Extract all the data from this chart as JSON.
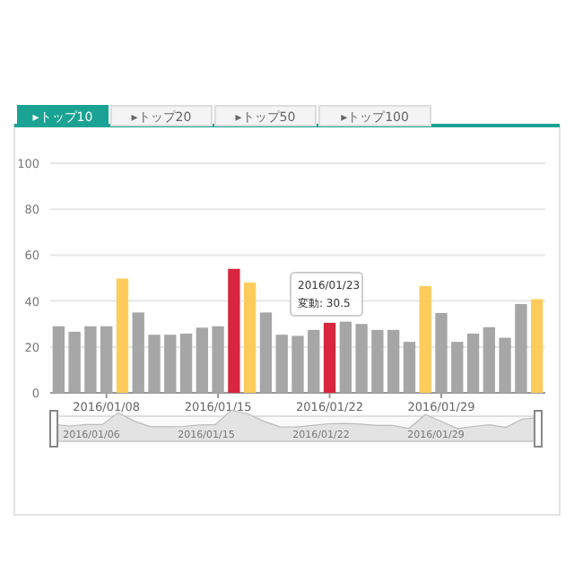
{
  "chart_data": {
    "type": "bar",
    "categories": [
      null,
      null,
      null,
      "2016/01/08",
      null,
      null,
      null,
      null,
      null,
      null,
      "2016/01/15",
      null,
      null,
      null,
      null,
      null,
      null,
      "2016/01/22",
      null,
      null,
      null,
      null,
      null,
      null,
      "2016/01/29",
      null,
      null,
      null,
      null,
      null,
      null
    ],
    "values": [
      29,
      26.6,
      29,
      29,
      49.8,
      35,
      25.3,
      25.3,
      25.8,
      28.4,
      29,
      54,
      48,
      35,
      25.3,
      24.8,
      27.4,
      30.5,
      31,
      30,
      27.4,
      27.4,
      22.2,
      46.5,
      34.8,
      22.2,
      25.8,
      28.6,
      24,
      38.7,
      40.8
    ],
    "colors": [
      "#a6a6a6",
      "#a6a6a6",
      "#a6a6a6",
      "#a6a6a6",
      "#ffcc5c",
      "#a6a6a6",
      "#a6a6a6",
      "#a6a6a6",
      "#a6a6a6",
      "#a6a6a6",
      "#a6a6a6",
      "#d7263d",
      "#ffcc5c",
      "#a6a6a6",
      "#a6a6a6",
      "#a6a6a6",
      "#a6a6a6",
      "#d7263d",
      "#a6a6a6",
      "#a6a6a6",
      "#a6a6a6",
      "#a6a6a6",
      "#a6a6a6",
      "#ffcc5c",
      "#a6a6a6",
      "#a6a6a6",
      "#a6a6a6",
      "#a6a6a6",
      "#a6a6a6",
      "#a6a6a6",
      "#ffcc5c"
    ],
    "ylim": [
      0,
      100
    ],
    "yticks": [
      0,
      20,
      40,
      60,
      80,
      100
    ],
    "grid": "y",
    "annotations": [
      "▸トップ10",
      "▸トップ20",
      "▸トップ50",
      "▸トップ100",
      "2016/01/23",
      "変動: 30.5",
      "2016/01/06",
      "2016/01/15",
      "2016/01/22",
      "2016/01/29"
    ]
  }
}
